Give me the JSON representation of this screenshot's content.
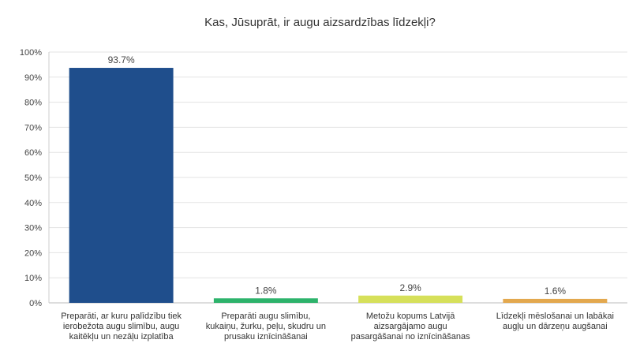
{
  "chart_data": {
    "type": "bar",
    "title": "Kas, Jūsuprāt, ir augu aizsardzības līdzekļi?",
    "categories": [
      "Preparāti, ar kuru palīdzību tiek ierobežota augu slimību, augu kaitēkļu un nezāļu izplatība",
      "Preparāti augu slimību, kukaiņu, žurku, peļu, skudru un prusaku iznīcināšanai",
      "Metožu kopums Latvijā aizsargājamo augu pasargāšanai no iznīcināšanas",
      "Līdzekļi mēslošanai un labākai augļu un dārzeņu augšanai"
    ],
    "values": [
      93.7,
      1.8,
      2.9,
      1.6
    ],
    "value_labels": [
      "93.7%",
      "1.8%",
      "2.9%",
      "1.6%"
    ],
    "colors": [
      "#1f4e8c",
      "#2db36b",
      "#d6e05a",
      "#e3a84e"
    ],
    "ylim": [
      0,
      100
    ],
    "yticks": [
      0,
      10,
      20,
      30,
      40,
      50,
      60,
      70,
      80,
      90,
      100
    ],
    "ytick_labels": [
      "0%",
      "10%",
      "20%",
      "30%",
      "40%",
      "50%",
      "60%",
      "70%",
      "80%",
      "90%",
      "100%"
    ],
    "grid": true,
    "xlabel": "",
    "ylabel": ""
  }
}
